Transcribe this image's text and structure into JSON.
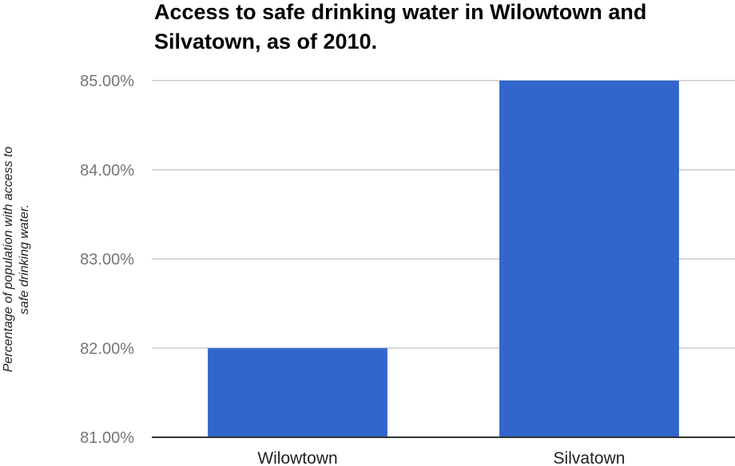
{
  "chart_data": {
    "type": "bar",
    "title_lines": [
      "Access to safe drinking water in Wilowtown and",
      "Silvatown, as of 2010."
    ],
    "ylabel_lines": [
      "Percentage of population with access to",
      "safe drinking water."
    ],
    "xlabel": "",
    "categories": [
      "Wilowtown",
      "Silvatown"
    ],
    "values": [
      82.0,
      85.0
    ],
    "ylim": [
      81.0,
      85.0
    ],
    "yticks": [
      81.0,
      82.0,
      83.0,
      84.0,
      85.0
    ],
    "ytick_labels": [
      "81.00%",
      "82.00%",
      "83.00%",
      "84.00%",
      "85.00%"
    ],
    "grid": true,
    "legend": "none",
    "bar_color": "#3366cc"
  }
}
